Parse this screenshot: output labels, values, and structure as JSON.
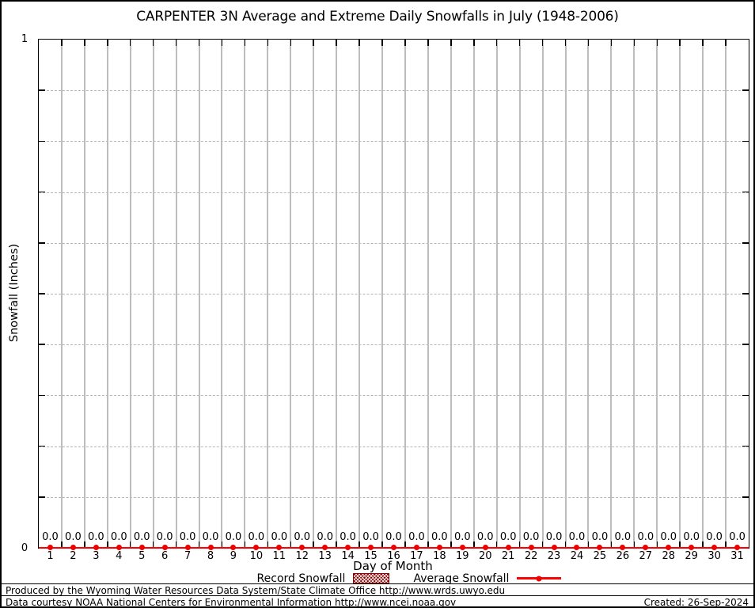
{
  "chart_data": {
    "type": "line",
    "title": "CARPENTER 3N Average and Extreme Daily Snowfalls in July (1948-2006)",
    "xlabel": "Day of Month",
    "ylabel": "Snowfall (Inches)",
    "x_ticks": [
      1,
      2,
      3,
      4,
      5,
      6,
      7,
      8,
      9,
      10,
      11,
      12,
      13,
      14,
      15,
      16,
      17,
      18,
      19,
      20,
      21,
      22,
      23,
      24,
      25,
      26,
      27,
      28,
      29,
      30,
      31
    ],
    "ylim": [
      0,
      1
    ],
    "ymin_label": "0",
    "ymax_label": "1",
    "ygrid_interval": 0.1,
    "grid": true,
    "legend_position": "bottom-center",
    "series": [
      {
        "name": "Record Snowfall",
        "marker": "hatched-box",
        "color": "#8b0000",
        "values": [
          0,
          0,
          0,
          0,
          0,
          0,
          0,
          0,
          0,
          0,
          0,
          0,
          0,
          0,
          0,
          0,
          0,
          0,
          0,
          0,
          0,
          0,
          0,
          0,
          0,
          0,
          0,
          0,
          0,
          0,
          0
        ]
      },
      {
        "name": "Average Snowfall",
        "marker": "line-point",
        "color": "#ff0000",
        "values": [
          0,
          0,
          0,
          0,
          0,
          0,
          0,
          0,
          0,
          0,
          0,
          0,
          0,
          0,
          0,
          0,
          0,
          0,
          0,
          0,
          0,
          0,
          0,
          0,
          0,
          0,
          0,
          0,
          0,
          0,
          0
        ]
      }
    ],
    "point_label_format": "0.0"
  },
  "footer": {
    "line1": "Produced by the Wyoming Water Resources Data System/State Climate Office http://www.wrds.uwyo.edu",
    "line2": "Data courtesy NOAA National Centers for Environmental Information http://www.ncei.noaa.gov",
    "created": "Created: 26-Sep-2024"
  },
  "colors": {
    "average_line": "#ff0000",
    "record_fill": "#8b0000",
    "grid_vertical": "#bdbdbd",
    "grid_horizontal_dashed": "#b5b5b5",
    "axis": "#000000"
  }
}
